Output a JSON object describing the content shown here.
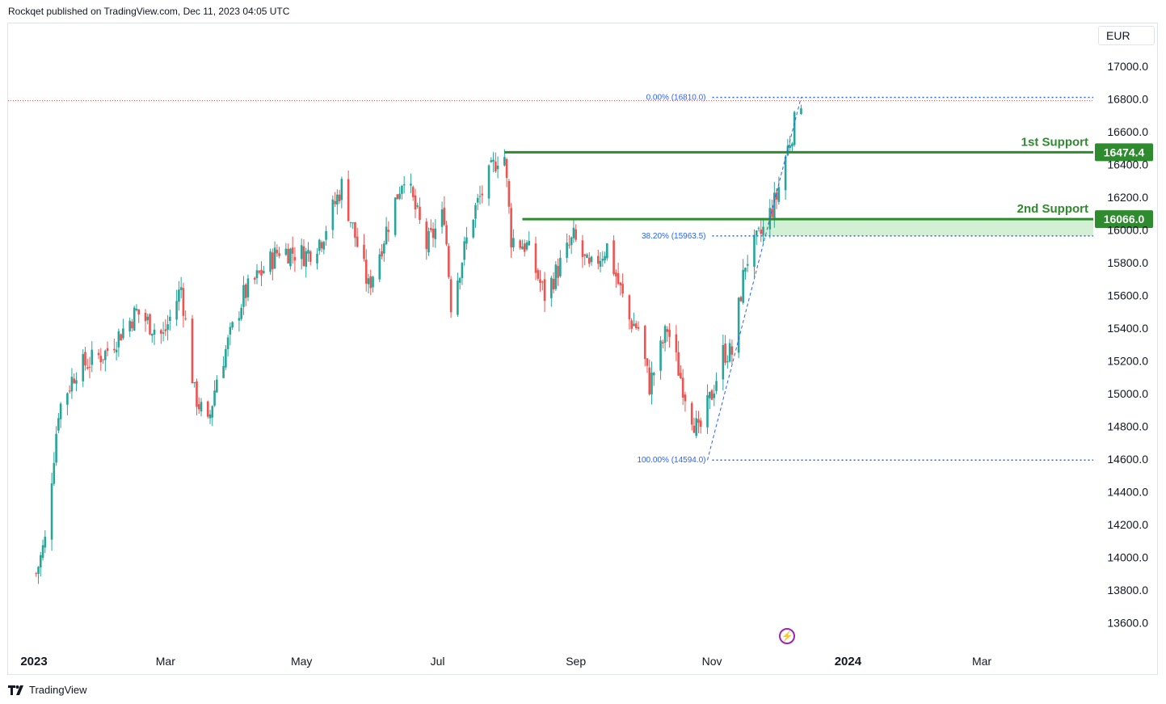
{
  "header": {
    "published": "Rockqet published on TradingView.com, Dec 11, 2023 04:05 UTC"
  },
  "currency": "EUR",
  "brand": {
    "name": "TradingView"
  },
  "icons": {
    "brand": "tradingview-logo-icon",
    "event": "lightning-icon"
  },
  "colors": {
    "up": "#26a69a",
    "down": "#ef5350",
    "support": "#2e8b2e",
    "zone": "#d4f0d4",
    "fib": "#2962ff",
    "event": "#9c27b0"
  },
  "chart_data": {
    "type": "candlestick",
    "yaxis": {
      "min": 13500,
      "max": 17250,
      "ticks": [
        13600,
        13800,
        14000,
        14200,
        14400,
        14600,
        14800,
        15000,
        15200,
        15400,
        15600,
        15800,
        16000,
        16200,
        16400,
        16600,
        16800,
        17000
      ]
    },
    "xaxis": {
      "labels": [
        {
          "text": "2023",
          "date": "2023-01-01",
          "bold": true
        },
        {
          "text": "Mar",
          "date": "2023-03-01"
        },
        {
          "text": "May",
          "date": "2023-05-01"
        },
        {
          "text": "Jul",
          "date": "2023-07-01"
        },
        {
          "text": "Sep",
          "date": "2023-09-01"
        },
        {
          "text": "Nov",
          "date": "2023-11-01"
        },
        {
          "text": "2024",
          "date": "2024-01-01",
          "bold": true
        },
        {
          "text": "Mar",
          "date": "2024-03-01"
        }
      ]
    },
    "anchors": [
      {
        "date": "2023-01-02",
        "close": 13900
      },
      {
        "date": "2023-01-06",
        "close": 14100
      },
      {
        "date": "2023-01-12",
        "close": 14900
      },
      {
        "date": "2023-01-20",
        "close": 15150
      },
      {
        "date": "2023-02-02",
        "close": 15250
      },
      {
        "date": "2023-02-16",
        "close": 15500
      },
      {
        "date": "2023-02-28",
        "close": 15350
      },
      {
        "date": "2023-03-08",
        "close": 15650
      },
      {
        "date": "2023-03-14",
        "close": 15000
      },
      {
        "date": "2023-03-20",
        "close": 14800
      },
      {
        "date": "2023-03-24",
        "close": 15100
      },
      {
        "date": "2023-04-05",
        "close": 15600
      },
      {
        "date": "2023-04-21",
        "close": 15880
      },
      {
        "date": "2023-05-03",
        "close": 15850
      },
      {
        "date": "2023-05-10",
        "close": 15950
      },
      {
        "date": "2023-05-19",
        "close": 16270
      },
      {
        "date": "2023-05-31",
        "close": 15650
      },
      {
        "date": "2023-06-16",
        "close": 16350
      },
      {
        "date": "2023-06-26",
        "close": 15900
      },
      {
        "date": "2023-07-04",
        "close": 16100
      },
      {
        "date": "2023-07-07",
        "close": 15550
      },
      {
        "date": "2023-07-17",
        "close": 16100
      },
      {
        "date": "2023-07-28",
        "close": 16450
      },
      {
        "date": "2023-07-31",
        "close": 16450
      },
      {
        "date": "2023-08-03",
        "close": 15950
      },
      {
        "date": "2023-08-10",
        "close": 15900
      },
      {
        "date": "2023-08-18",
        "close": 15600
      },
      {
        "date": "2023-08-31",
        "close": 15950
      },
      {
        "date": "2023-09-07",
        "close": 15750
      },
      {
        "date": "2023-09-15",
        "close": 15900
      },
      {
        "date": "2023-09-25",
        "close": 15450
      },
      {
        "date": "2023-09-29",
        "close": 15400
      },
      {
        "date": "2023-10-04",
        "close": 15050
      },
      {
        "date": "2023-10-12",
        "close": 15400
      },
      {
        "date": "2023-10-20",
        "close": 15000
      },
      {
        "date": "2023-10-26",
        "close": 14750
      },
      {
        "date": "2023-11-01",
        "close": 15000
      },
      {
        "date": "2023-11-06",
        "close": 15250
      },
      {
        "date": "2023-11-10",
        "close": 15250
      },
      {
        "date": "2023-11-16",
        "close": 15800
      },
      {
        "date": "2023-11-24",
        "close": 16000
      },
      {
        "date": "2023-11-30",
        "close": 16200
      },
      {
        "date": "2023-12-04",
        "close": 16450
      },
      {
        "date": "2023-12-11",
        "close": 16800
      }
    ],
    "last_price": 16810.0,
    "fibonacci": [
      {
        "label": "0.00% (16810.0)",
        "price": 16810.0,
        "start_date": "2023-10-30",
        "anchor_date": "2023-12-11"
      },
      {
        "label": "38.20% (15963.5)",
        "price": 15963.5,
        "start_date": "2023-10-30",
        "anchor_date": "2023-12-11"
      },
      {
        "label": "100.00% (14594.0)",
        "price": 14594.0,
        "start_date": "2023-10-30",
        "anchor_date": "2023-10-30"
      }
    ],
    "supports": [
      {
        "name": "1st Support",
        "price": 16474.4,
        "price_label": "16474.4",
        "start_date": "2023-07-31"
      },
      {
        "name": "2nd Support",
        "price": 16066.0,
        "price_label": "16066.0",
        "start_date": "2023-08-08",
        "zone_low": 15963.5
      }
    ]
  }
}
